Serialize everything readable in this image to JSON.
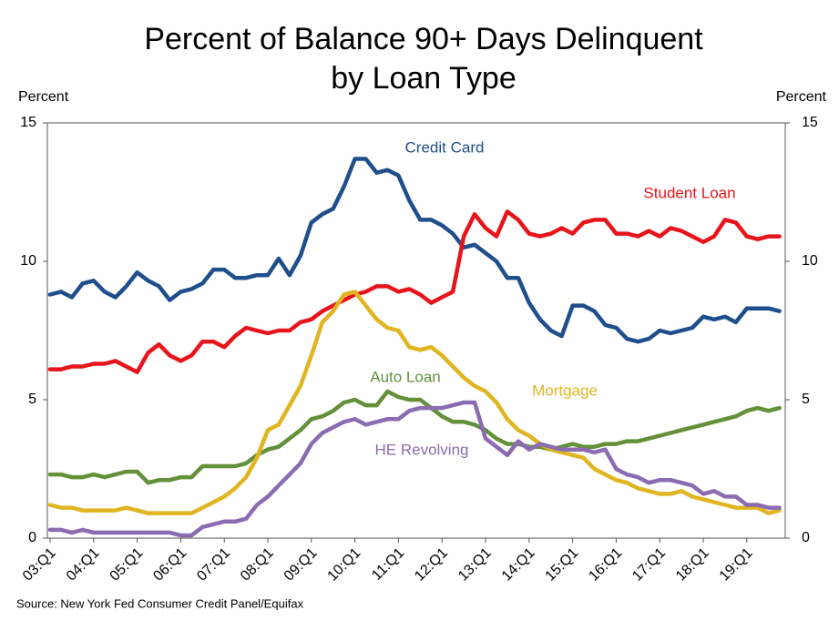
{
  "chart_data": {
    "type": "line",
    "title": [
      "Percent of Balance 90+ Days Delinquent",
      "by Loan Type"
    ],
    "y_label": "Percent",
    "y2_label": "Percent",
    "source": "Source: New York Fed Consumer Credit Panel/Equifax",
    "categories": [
      "03:Q1",
      null,
      null,
      null,
      "04:Q1",
      null,
      null,
      null,
      "05:Q1",
      null,
      null,
      null,
      "06:Q1",
      null,
      null,
      null,
      "07:Q1",
      null,
      null,
      null,
      "08:Q1",
      null,
      null,
      null,
      "09:Q1",
      null,
      null,
      null,
      "10:Q1",
      null,
      null,
      null,
      "11:Q1",
      null,
      null,
      null,
      "12:Q1",
      null,
      null,
      null,
      "13:Q1",
      null,
      null,
      null,
      "14:Q1",
      null,
      null,
      null,
      "15:Q1",
      null,
      null,
      null,
      "16:Q1",
      null,
      null,
      null,
      "17:Q1",
      null,
      null,
      null,
      "18:Q1",
      null,
      null,
      null,
      "19:Q1",
      null,
      null,
      null
    ],
    "ylim": [
      0,
      15
    ],
    "yticks": [
      0,
      5,
      10,
      15
    ],
    "y2lim": [
      0,
      15
    ],
    "y2ticks": [
      0,
      5,
      10,
      15
    ],
    "series": [
      {
        "name": "Credit Card",
        "color": "#1f4e8c",
        "values": [
          8.8,
          8.9,
          8.7,
          9.2,
          9.3,
          8.9,
          8.7,
          9.1,
          9.6,
          9.3,
          9.1,
          8.6,
          8.9,
          9.0,
          9.2,
          9.7,
          9.7,
          9.4,
          9.4,
          9.5,
          9.5,
          10.1,
          9.5,
          10.2,
          11.4,
          11.7,
          11.9,
          12.7,
          13.7,
          13.7,
          13.2,
          13.3,
          13.1,
          12.2,
          11.5,
          11.5,
          11.3,
          11.0,
          10.5,
          10.6,
          10.3,
          10.0,
          9.4,
          9.4,
          8.5,
          7.9,
          7.5,
          7.3,
          8.4,
          8.4,
          8.2,
          7.7,
          7.6,
          7.2,
          7.1,
          7.2,
          7.5,
          7.4,
          7.5,
          7.6,
          8.0,
          7.9,
          8.0,
          7.8,
          8.3,
          8.3,
          8.3,
          8.2
        ]
      },
      {
        "name": "Student Loan",
        "color": "#e8141b",
        "values": [
          6.1,
          6.1,
          6.2,
          6.2,
          6.3,
          6.3,
          6.4,
          6.2,
          6.0,
          6.7,
          7.0,
          6.6,
          6.4,
          6.6,
          7.1,
          7.1,
          6.9,
          7.3,
          7.6,
          7.5,
          7.4,
          7.5,
          7.5,
          7.8,
          7.9,
          8.2,
          8.4,
          8.6,
          8.8,
          8.9,
          9.1,
          9.1,
          8.9,
          9.0,
          8.8,
          8.5,
          8.7,
          8.9,
          10.9,
          11.7,
          11.2,
          10.9,
          11.8,
          11.5,
          11.0,
          10.9,
          11.0,
          11.2,
          11.0,
          11.4,
          11.5,
          11.5,
          11.0,
          11.0,
          10.9,
          11.1,
          10.9,
          11.2,
          11.1,
          10.9,
          10.7,
          10.9,
          11.5,
          11.4,
          10.9,
          10.8,
          10.9,
          10.9
        ]
      },
      {
        "name": "Auto Loan",
        "color": "#63913a",
        "values": [
          2.3,
          2.3,
          2.2,
          2.2,
          2.3,
          2.2,
          2.3,
          2.4,
          2.4,
          2.0,
          2.1,
          2.1,
          2.2,
          2.2,
          2.6,
          2.6,
          2.6,
          2.6,
          2.7,
          3.0,
          3.2,
          3.3,
          3.6,
          3.9,
          4.3,
          4.4,
          4.6,
          4.9,
          5.0,
          4.8,
          4.8,
          5.3,
          5.1,
          5.0,
          5.0,
          4.7,
          4.4,
          4.2,
          4.2,
          4.1,
          3.9,
          3.6,
          3.4,
          3.4,
          3.3,
          3.3,
          3.2,
          3.3,
          3.4,
          3.3,
          3.3,
          3.4,
          3.4,
          3.5,
          3.5,
          3.6,
          3.7,
          3.8,
          3.9,
          4.0,
          4.1,
          4.2,
          4.3,
          4.4,
          4.6,
          4.7,
          4.6,
          4.7
        ]
      },
      {
        "name": "Mortgage",
        "color": "#e0b521",
        "values": [
          1.2,
          1.1,
          1.1,
          1.0,
          1.0,
          1.0,
          1.0,
          1.1,
          1.0,
          0.9,
          0.9,
          0.9,
          0.9,
          0.9,
          1.1,
          1.3,
          1.5,
          1.8,
          2.2,
          2.9,
          3.9,
          4.1,
          4.8,
          5.5,
          6.6,
          7.8,
          8.2,
          8.8,
          8.9,
          8.4,
          7.9,
          7.6,
          7.5,
          6.9,
          6.8,
          6.9,
          6.6,
          6.2,
          5.8,
          5.5,
          5.3,
          4.9,
          4.3,
          3.9,
          3.7,
          3.4,
          3.2,
          3.1,
          3.0,
          2.9,
          2.5,
          2.3,
          2.1,
          2.0,
          1.8,
          1.7,
          1.6,
          1.6,
          1.7,
          1.5,
          1.4,
          1.3,
          1.2,
          1.1,
          1.1,
          1.1,
          0.9,
          1.0
        ]
      },
      {
        "name": "HE Revolving",
        "color": "#8b6bb1",
        "values": [
          0.3,
          0.3,
          0.2,
          0.3,
          0.2,
          0.2,
          0.2,
          0.2,
          0.2,
          0.2,
          0.2,
          0.2,
          0.1,
          0.1,
          0.4,
          0.5,
          0.6,
          0.6,
          0.7,
          1.2,
          1.5,
          1.9,
          2.3,
          2.7,
          3.4,
          3.8,
          4.0,
          4.2,
          4.3,
          4.1,
          4.2,
          4.3,
          4.3,
          4.6,
          4.7,
          4.7,
          4.7,
          4.8,
          4.9,
          4.9,
          3.6,
          3.3,
          3.0,
          3.5,
          3.2,
          3.4,
          3.3,
          3.2,
          3.2,
          3.2,
          3.1,
          3.2,
          2.5,
          2.3,
          2.2,
          2.0,
          2.1,
          2.1,
          2.0,
          1.9,
          1.6,
          1.7,
          1.5,
          1.5,
          1.2,
          1.2,
          1.1,
          1.1
        ]
      }
    ]
  }
}
